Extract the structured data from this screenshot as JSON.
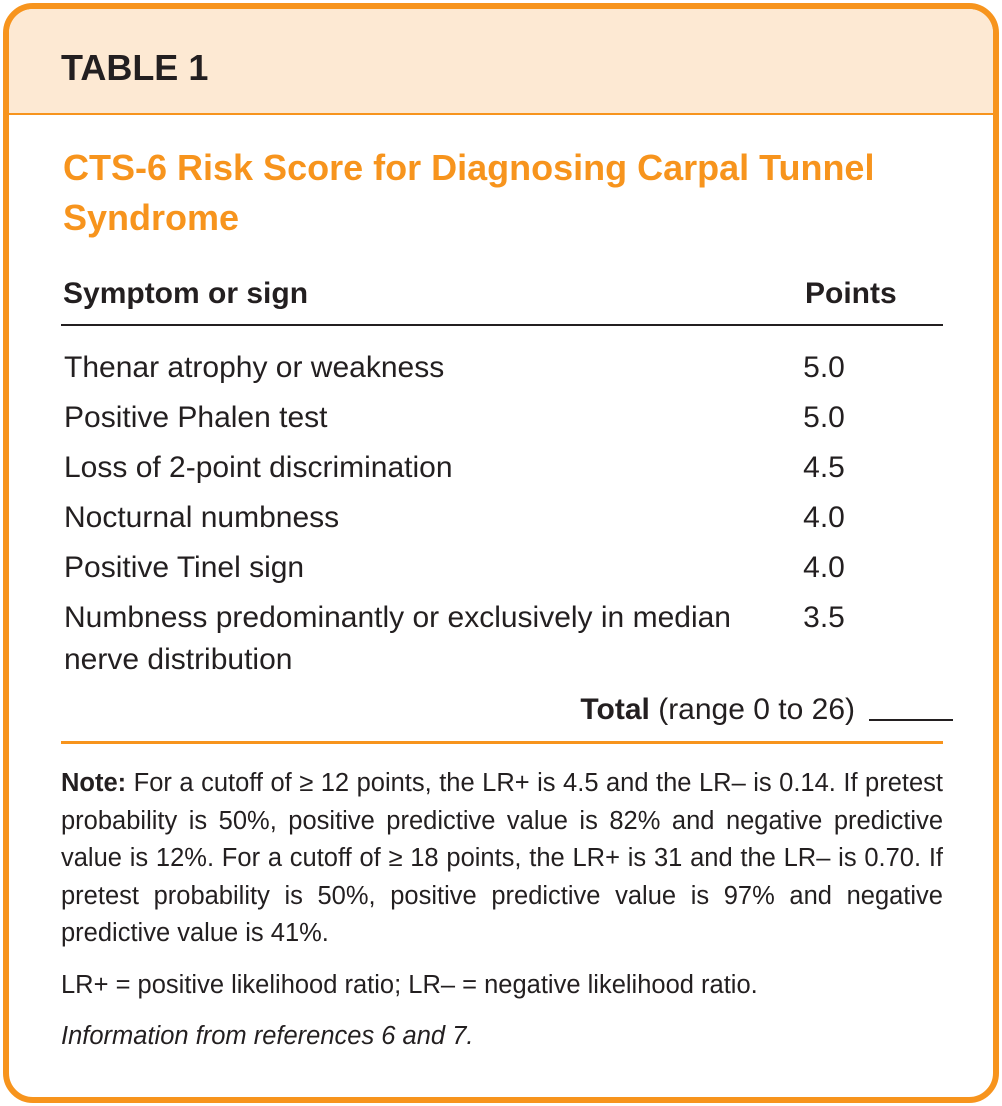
{
  "header": {
    "label": "TABLE 1"
  },
  "title": "CTS-6 Risk Score for Diagnosing Carpal Tunnel Syndrome",
  "table": {
    "columns": [
      "Symptom or sign",
      "Points"
    ],
    "rows": [
      [
        "Thenar atrophy or weakness",
        "5.0"
      ],
      [
        "Positive Phalen test",
        "5.0"
      ],
      [
        "Loss of 2-point discrimination",
        "4.5"
      ],
      [
        "Nocturnal numbness",
        "4.0"
      ],
      [
        "Positive Tinel sign",
        "4.0"
      ],
      [
        "Numbness predominantly or exclusively in median nerve distribution",
        "3.5"
      ]
    ],
    "total": {
      "label": "Total",
      "range": "(range 0 to 26)"
    }
  },
  "note": {
    "label": "Note:",
    "text": "For a cutoff of ≥ 12 points, the LR+ is 4.5 and the LR– is 0.14. If pretest probability is 50%, positive predictive value is 82% and negative predictive value is 12%. For a cutoff of ≥ 18 points, the LR+ is 31 and the LR– is 0.70. If pretest probability is 50%, positive predictive value is 97% and negative predictive value is 41%."
  },
  "abbreviations": "LR+ = positive likelihood ratio; LR– = negative likelihood ratio.",
  "source": "Information from references 6 and 7."
}
